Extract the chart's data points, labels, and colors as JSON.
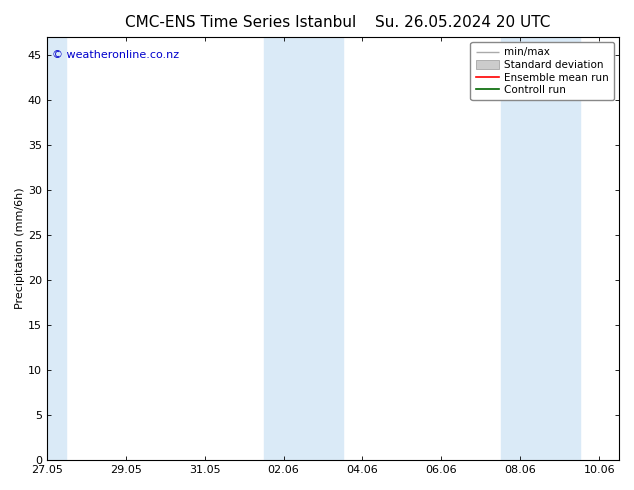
{
  "title_left": "CMC-ENS Time Series Istanbul",
  "title_right": "Su. 26.05.2024 20 UTC",
  "ylabel": "Precipitation (mm/6h)",
  "ylim": [
    0,
    47
  ],
  "yticks": [
    0,
    5,
    10,
    15,
    20,
    25,
    30,
    35,
    40,
    45
  ],
  "background_color": "#ffffff",
  "plot_bg_color": "#ffffff",
  "shaded_band_color": "#daeaf7",
  "watermark_text": "© weatheronline.co.nz",
  "watermark_color": "#0000cc",
  "xtick_labels": [
    "27.05",
    "29.05",
    "31.05",
    "02.06",
    "04.06",
    "06.06",
    "08.06",
    "10.06"
  ],
  "xtick_positions": [
    0,
    2,
    4,
    6,
    8,
    10,
    12,
    14
  ],
  "x_min": 0,
  "x_max": 14.5,
  "font_size_title": 11,
  "font_size_labels": 8,
  "font_size_ticks": 8,
  "font_size_legend": 7.5,
  "font_size_watermark": 8,
  "shaded_regions": [
    {
      "x_start": -0.1,
      "x_end": 0.5
    },
    {
      "x_start": 5.5,
      "x_end": 7.5
    },
    {
      "x_start": 11.5,
      "x_end": 13.5
    }
  ],
  "legend_labels": [
    "min/max",
    "Standard deviation",
    "Ensemble mean run",
    "Controll run"
  ],
  "legend_colors": [
    "#aaaaaa",
    "#cccccc",
    "#ff0000",
    "#006600"
  ]
}
